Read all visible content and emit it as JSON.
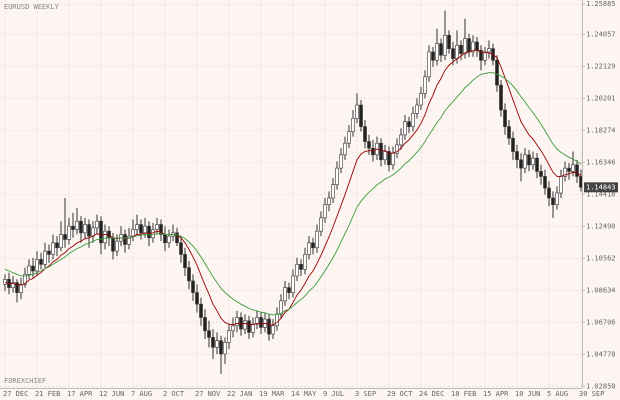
{
  "chart_data": {
    "type": "candlestick",
    "title": "EURUSD WEEKLY",
    "watermark": "FOREXCHIEF",
    "grid": true,
    "up_color": "#ffffff",
    "down_color": "#222222",
    "ylim": [
      1.0275,
      1.2613
    ],
    "yticks": [
      1.25885,
      1.24057,
      1.22129,
      1.20201,
      1.18274,
      1.16346,
      1.14418,
      {
        "value": 1.1249,
        "label": "1.12490"
      },
      1.10562,
      1.08634,
      1.06706,
      1.04778,
      {
        "value": 1.0285,
        "label": "1.02850"
      }
    ],
    "categories": [
      "27 DEC",
      null,
      null,
      null,
      null,
      null,
      null,
      null,
      "21 FEB",
      null,
      null,
      null,
      null,
      null,
      null,
      null,
      "17 APR",
      null,
      null,
      null,
      null,
      null,
      null,
      null,
      "12 JUN",
      null,
      null,
      null,
      null,
      null,
      null,
      null,
      "7 AUG",
      null,
      null,
      null,
      null,
      null,
      null,
      null,
      "2 OCT",
      null,
      null,
      null,
      null,
      null,
      null,
      null,
      "27 NOV",
      null,
      null,
      null,
      null,
      null,
      null,
      null,
      "22 JAN",
      null,
      null,
      null,
      null,
      null,
      null,
      null,
      "19 MAR",
      null,
      null,
      null,
      null,
      null,
      null,
      null,
      "14 MAY",
      null,
      null,
      null,
      null,
      null,
      null,
      null,
      "9 JUL",
      null,
      null,
      null,
      null,
      null,
      null,
      null,
      "3 SEP",
      null,
      null,
      null,
      null,
      null,
      null,
      null,
      "29 OCT",
      null,
      null,
      null,
      null,
      null,
      null,
      null,
      "24 DEC",
      null,
      null,
      null,
      null,
      null,
      null,
      null,
      "18 FEB",
      null,
      null,
      null,
      null,
      null,
      null,
      null,
      "15 APR",
      null,
      null,
      null,
      null,
      null,
      null,
      null,
      "10 JUN",
      null,
      null,
      null,
      null,
      null,
      null,
      null,
      "5 AUG",
      null,
      null,
      null,
      null,
      null,
      null,
      null,
      "30 SEP"
    ],
    "ohlc": [
      [
        1.09,
        1.096,
        1.086,
        1.093
      ],
      [
        1.093,
        1.097,
        1.084,
        1.088
      ],
      [
        1.088,
        1.095,
        1.085,
        1.091
      ],
      [
        1.091,
        1.093,
        1.079,
        1.085
      ],
      [
        1.085,
        1.094,
        1.081,
        1.09
      ],
      [
        1.09,
        1.1,
        1.088,
        1.096
      ],
      [
        1.096,
        1.105,
        1.093,
        1.101
      ],
      [
        1.101,
        1.106,
        1.094,
        1.098
      ],
      [
        1.098,
        1.11,
        1.095,
        1.105
      ],
      [
        1.105,
        1.109,
        1.099,
        1.102
      ],
      [
        1.102,
        1.115,
        1.1,
        1.11
      ],
      [
        1.11,
        1.114,
        1.103,
        1.108
      ],
      [
        1.108,
        1.12,
        1.105,
        1.115
      ],
      [
        1.115,
        1.119,
        1.107,
        1.112
      ],
      [
        1.112,
        1.128,
        1.11,
        1.12
      ],
      [
        1.12,
        1.142,
        1.112,
        1.117
      ],
      [
        1.117,
        1.13,
        1.114,
        1.125
      ],
      [
        1.125,
        1.133,
        1.118,
        1.123
      ],
      [
        1.123,
        1.136,
        1.12,
        1.128
      ],
      [
        1.128,
        1.131,
        1.115,
        1.121
      ],
      [
        1.121,
        1.13,
        1.117,
        1.126
      ],
      [
        1.126,
        1.129,
        1.112,
        1.119
      ],
      [
        1.119,
        1.128,
        1.115,
        1.124
      ],
      [
        1.124,
        1.132,
        1.12,
        1.128
      ],
      [
        1.128,
        1.131,
        1.108,
        1.115
      ],
      [
        1.115,
        1.126,
        1.111,
        1.122
      ],
      [
        1.122,
        1.125,
        1.113,
        1.118
      ],
      [
        1.118,
        1.121,
        1.105,
        1.11
      ],
      [
        1.11,
        1.12,
        1.107,
        1.116
      ],
      [
        1.116,
        1.125,
        1.113,
        1.12
      ],
      [
        1.12,
        1.123,
        1.109,
        1.114
      ],
      [
        1.114,
        1.124,
        1.111,
        1.119
      ],
      [
        1.119,
        1.129,
        1.116,
        1.123
      ],
      [
        1.123,
        1.132,
        1.12,
        1.126
      ],
      [
        1.126,
        1.129,
        1.117,
        1.121
      ],
      [
        1.121,
        1.13,
        1.118,
        1.125
      ],
      [
        1.125,
        1.128,
        1.113,
        1.118
      ],
      [
        1.118,
        1.127,
        1.115,
        1.123
      ],
      [
        1.123,
        1.13,
        1.12,
        1.126
      ],
      [
        1.126,
        1.129,
        1.116,
        1.12
      ],
      [
        1.12,
        1.125,
        1.11,
        1.115
      ],
      [
        1.115,
        1.123,
        1.112,
        1.119
      ],
      [
        1.119,
        1.126,
        1.116,
        1.121
      ],
      [
        1.121,
        1.124,
        1.113,
        1.115
      ],
      [
        1.115,
        1.119,
        1.103,
        1.108
      ],
      [
        1.108,
        1.112,
        1.095,
        1.1
      ],
      [
        1.1,
        1.104,
        1.087,
        1.092
      ],
      [
        1.092,
        1.096,
        1.08,
        1.085
      ],
      [
        1.085,
        1.09,
        1.073,
        1.078
      ],
      [
        1.078,
        1.082,
        1.065,
        1.07
      ],
      [
        1.07,
        1.075,
        1.057,
        1.062
      ],
      [
        1.062,
        1.068,
        1.052,
        1.058
      ],
      [
        1.058,
        1.063,
        1.045,
        1.052
      ],
      [
        1.052,
        1.061,
        1.048,
        1.056
      ],
      [
        1.056,
        1.059,
        1.036,
        1.048
      ],
      [
        1.048,
        1.058,
        1.042,
        1.055
      ],
      [
        1.055,
        1.066,
        1.051,
        1.062
      ],
      [
        1.062,
        1.07,
        1.058,
        1.065
      ],
      [
        1.065,
        1.074,
        1.061,
        1.07
      ],
      [
        1.07,
        1.073,
        1.059,
        1.063
      ],
      [
        1.063,
        1.072,
        1.06,
        1.068
      ],
      [
        1.068,
        1.071,
        1.057,
        1.061
      ],
      [
        1.061,
        1.07,
        1.058,
        1.066
      ],
      [
        1.066,
        1.074,
        1.063,
        1.07
      ],
      [
        1.07,
        1.073,
        1.06,
        1.064
      ],
      [
        1.064,
        1.073,
        1.061,
        1.069
      ],
      [
        1.069,
        1.072,
        1.056,
        1.06
      ],
      [
        1.06,
        1.069,
        1.057,
        1.065
      ],
      [
        1.065,
        1.076,
        1.062,
        1.072
      ],
      [
        1.072,
        1.084,
        1.069,
        1.08
      ],
      [
        1.08,
        1.092,
        1.077,
        1.088
      ],
      [
        1.088,
        1.091,
        1.081,
        1.085
      ],
      [
        1.085,
        1.099,
        1.082,
        1.095
      ],
      [
        1.095,
        1.106,
        1.092,
        1.102
      ],
      [
        1.102,
        1.105,
        1.095,
        1.099
      ],
      [
        1.099,
        1.112,
        1.096,
        1.108
      ],
      [
        1.108,
        1.119,
        1.105,
        1.115
      ],
      [
        1.115,
        1.118,
        1.108,
        1.112
      ],
      [
        1.112,
        1.126,
        1.109,
        1.122
      ],
      [
        1.122,
        1.134,
        1.119,
        1.13
      ],
      [
        1.13,
        1.142,
        1.127,
        1.138
      ],
      [
        1.138,
        1.146,
        1.134,
        1.142
      ],
      [
        1.142,
        1.154,
        1.139,
        1.15
      ],
      [
        1.15,
        1.164,
        1.147,
        1.16
      ],
      [
        1.16,
        1.172,
        1.157,
        1.168
      ],
      [
        1.168,
        1.179,
        1.165,
        1.175
      ],
      [
        1.175,
        1.186,
        1.172,
        1.182
      ],
      [
        1.182,
        1.195,
        1.179,
        1.19
      ],
      [
        1.19,
        1.205,
        1.187,
        1.198
      ],
      [
        1.198,
        1.201,
        1.182,
        1.185
      ],
      [
        1.185,
        1.189,
        1.172,
        1.176
      ],
      [
        1.176,
        1.18,
        1.168,
        1.172
      ],
      [
        1.172,
        1.177,
        1.164,
        1.168
      ],
      [
        1.168,
        1.179,
        1.165,
        1.175
      ],
      [
        1.175,
        1.178,
        1.161,
        1.165
      ],
      [
        1.165,
        1.174,
        1.162,
        1.17
      ],
      [
        1.17,
        1.173,
        1.158,
        1.162
      ],
      [
        1.162,
        1.173,
        1.159,
        1.169
      ],
      [
        1.169,
        1.178,
        1.166,
        1.174
      ],
      [
        1.174,
        1.184,
        1.171,
        1.18
      ],
      [
        1.18,
        1.192,
        1.177,
        1.188
      ],
      [
        1.188,
        1.191,
        1.181,
        1.185
      ],
      [
        1.185,
        1.197,
        1.182,
        1.193
      ],
      [
        1.193,
        1.202,
        1.19,
        1.198
      ],
      [
        1.198,
        1.209,
        1.195,
        1.205
      ],
      [
        1.205,
        1.219,
        1.202,
        1.215
      ],
      [
        1.215,
        1.234,
        1.212,
        1.23
      ],
      [
        1.23,
        1.233,
        1.221,
        1.225
      ],
      [
        1.225,
        1.244,
        1.222,
        1.235
      ],
      [
        1.235,
        1.238,
        1.224,
        1.228
      ],
      [
        1.228,
        1.255,
        1.225,
        1.24
      ],
      [
        1.24,
        1.243,
        1.229,
        1.232
      ],
      [
        1.232,
        1.236,
        1.222,
        1.226
      ],
      [
        1.226,
        1.243,
        1.223,
        1.234
      ],
      [
        1.234,
        1.237,
        1.225,
        1.229
      ],
      [
        1.229,
        1.25,
        1.226,
        1.238
      ],
      [
        1.238,
        1.241,
        1.227,
        1.23
      ],
      [
        1.23,
        1.24,
        1.227,
        1.236
      ],
      [
        1.236,
        1.239,
        1.227,
        1.231
      ],
      [
        1.231,
        1.234,
        1.219,
        1.225
      ],
      [
        1.225,
        1.233,
        1.222,
        1.23
      ],
      [
        1.23,
        1.237,
        1.226,
        1.232
      ],
      [
        1.232,
        1.235,
        1.222,
        1.225
      ],
      [
        1.225,
        1.228,
        1.206,
        1.21
      ],
      [
        1.21,
        1.213,
        1.191,
        1.195
      ],
      [
        1.195,
        1.199,
        1.18,
        1.185
      ],
      [
        1.185,
        1.189,
        1.174,
        1.178
      ],
      [
        1.178,
        1.182,
        1.165,
        1.17
      ],
      [
        1.17,
        1.174,
        1.16,
        1.165
      ],
      [
        1.165,
        1.169,
        1.152,
        1.16
      ],
      [
        1.16,
        1.172,
        1.157,
        1.168
      ],
      [
        1.168,
        1.171,
        1.158,
        1.162
      ],
      [
        1.162,
        1.17,
        1.159,
        1.166
      ],
      [
        1.166,
        1.169,
        1.154,
        1.158
      ],
      [
        1.158,
        1.162,
        1.15,
        1.155
      ],
      [
        1.155,
        1.159,
        1.144,
        1.148
      ],
      [
        1.148,
        1.152,
        1.137,
        1.142
      ],
      [
        1.142,
        1.146,
        1.13,
        1.138
      ],
      [
        1.138,
        1.149,
        1.135,
        1.145
      ],
      [
        1.145,
        1.159,
        1.142,
        1.155
      ],
      [
        1.155,
        1.164,
        1.152,
        1.16
      ],
      [
        1.16,
        1.163,
        1.153,
        1.158
      ],
      [
        1.158,
        1.17,
        1.155,
        1.162
      ],
      [
        1.162,
        1.165,
        1.151,
        1.155
      ],
      [
        1.155,
        1.159,
        1.146,
        1.14843
      ]
    ],
    "series": [
      {
        "color": "#990000",
        "values": [
          1.091,
          1.0905,
          1.0905,
          1.0895,
          1.0895,
          1.0905,
          1.0925,
          1.0935,
          1.0955,
          1.097,
          1.0995,
          1.101,
          1.1035,
          1.105,
          1.1075,
          1.109,
          1.1115,
          1.113,
          1.115,
          1.116,
          1.1175,
          1.118,
          1.119,
          1.1205,
          1.1195,
          1.12,
          1.1195,
          1.118,
          1.1175,
          1.118,
          1.1175,
          1.1178,
          1.1188,
          1.12,
          1.1202,
          1.121,
          1.1205,
          1.121,
          1.122,
          1.1215,
          1.12,
          1.12,
          1.12,
          1.1195,
          1.118,
          1.115,
          1.111,
          1.1065,
          1.1015,
          1.0955,
          1.0895,
          1.084,
          1.078,
          1.074,
          1.0695,
          1.067,
          1.066,
          1.0655,
          1.0665,
          1.066,
          1.0665,
          1.0655,
          1.0657,
          1.0665,
          1.066,
          1.0665,
          1.0655,
          1.0655,
          1.067,
          1.0695,
          1.073,
          1.075,
          1.079,
          1.0835,
          1.0865,
          1.0905,
          1.095,
          1.098,
          1.1025,
          1.1075,
          1.113,
          1.1185,
          1.1245,
          1.131,
          1.1375,
          1.144,
          1.151,
          1.158,
          1.165,
          1.1685,
          1.17,
          1.1705,
          1.1705,
          1.1715,
          1.1705,
          1.1705,
          1.169,
          1.169,
          1.17,
          1.172,
          1.175,
          1.177,
          1.18,
          1.183,
          1.187,
          1.192,
          1.199,
          1.204,
          1.21,
          1.214,
          1.219,
          1.222,
          1.224,
          1.226,
          1.2275,
          1.2295,
          1.23,
          1.231,
          1.231,
          1.23,
          1.2295,
          1.2295,
          1.2285,
          1.2265,
          1.221,
          1.2145,
          1.208,
          1.201,
          1.1945,
          1.188,
          1.184,
          1.18,
          1.1775,
          1.174,
          1.1705,
          1.1665,
          1.162,
          1.1575,
          1.155,
          1.155,
          1.156,
          1.1565,
          1.1575,
          1.157,
          1.1555
        ]
      },
      {
        "color": "#3c9c3c",
        "values": [
          1.099,
          1.098,
          1.097,
          1.096,
          1.095,
          1.095,
          1.0955,
          1.096,
          1.097,
          1.098,
          1.0995,
          1.1005,
          1.102,
          1.1035,
          1.105,
          1.1065,
          1.1085,
          1.11,
          1.1115,
          1.1125,
          1.114,
          1.1148,
          1.1158,
          1.117,
          1.1172,
          1.1178,
          1.118,
          1.1178,
          1.1178,
          1.118,
          1.1178,
          1.118,
          1.1185,
          1.1192,
          1.1195,
          1.12,
          1.1198,
          1.12,
          1.1205,
          1.1205,
          1.12,
          1.12,
          1.12,
          1.1198,
          1.119,
          1.1175,
          1.1155,
          1.113,
          1.11,
          1.1065,
          1.1025,
          1.0985,
          1.0945,
          1.091,
          1.0875,
          1.085,
          1.083,
          1.081,
          1.0795,
          1.078,
          1.0768,
          1.0755,
          1.0745,
          1.074,
          1.0732,
          1.0728,
          1.072,
          1.0715,
          1.0718,
          1.0725,
          1.074,
          1.075,
          1.0768,
          1.079,
          1.0808,
          1.083,
          1.0858,
          1.088,
          1.091,
          1.0945,
          1.098,
          1.102,
          1.106,
          1.1105,
          1.1155,
          1.1205,
          1.1255,
          1.131,
          1.1365,
          1.14,
          1.143,
          1.1455,
          1.1475,
          1.15,
          1.1515,
          1.1535,
          1.1545,
          1.156,
          1.1578,
          1.16,
          1.1625,
          1.1645,
          1.167,
          1.1695,
          1.1725,
          1.176,
          1.18,
          1.1835,
          1.1875,
          1.1905,
          1.1945,
          1.1975,
          1.2,
          1.203,
          1.2055,
          1.2085,
          1.2105,
          1.213,
          1.215,
          1.2165,
          1.217,
          1.2175,
          1.2175,
          1.2165,
          1.2155,
          1.214,
          1.212,
          1.2095,
          1.2065,
          1.203,
          1.2,
          1.1965,
          1.1935,
          1.19,
          1.1865,
          1.1825,
          1.1785,
          1.1745,
          1.1715,
          1.1695,
          1.168,
          1.1665,
          1.1655,
          1.164,
          1.1625
        ]
      }
    ]
  }
}
